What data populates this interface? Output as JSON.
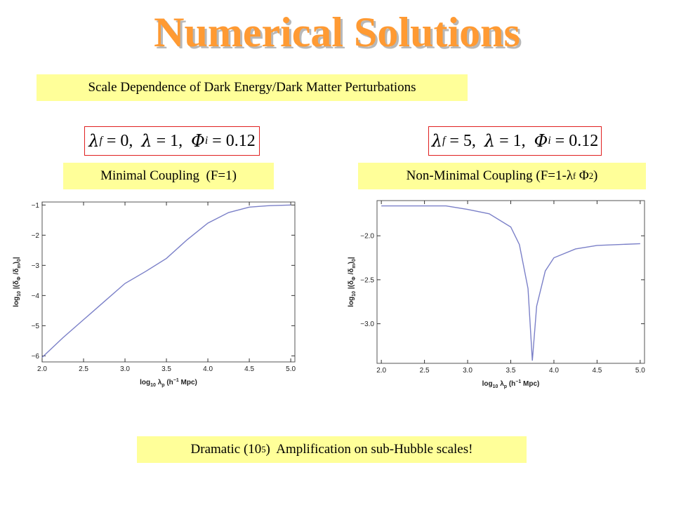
{
  "title": "Numerical Solutions",
  "subtitle": "Scale Dependence of Dark Energy/Dark Matter Perturbations",
  "params": [
    [
      {
        "t": "λ"
      },
      {
        "t": "f",
        "s": "sub"
      },
      {
        "t": " = 0,  "
      },
      {
        "t": "λ"
      },
      {
        "t": " = 1,  "
      },
      {
        "t": "Φ"
      },
      {
        "t": "i",
        "s": "sub"
      },
      {
        "t": " = 0.12"
      }
    ],
    [
      {
        "t": "λ"
      },
      {
        "t": "f",
        "s": "sub"
      },
      {
        "t": " = 5,  "
      },
      {
        "t": "λ"
      },
      {
        "t": " = 1,  "
      },
      {
        "t": "Φ"
      },
      {
        "t": "i",
        "s": "sub"
      },
      {
        "t": " = 0.12"
      }
    ]
  ],
  "panel_labels": [
    [
      {
        "t": "Minimal Coupling  (F=1)"
      }
    ],
    [
      {
        "t": "Non-Minimal Coupling (F=1-λ"
      },
      {
        "t": "f",
        "s": "sub"
      },
      {
        "t": " Φ"
      },
      {
        "t": "2",
        "s": "sup"
      },
      {
        "t": ")"
      }
    ]
  ],
  "footer": [
    {
      "t": "Dramatic (10"
    },
    {
      "t": "5",
      "s": "sup"
    },
    {
      "t": ")  Amplification on sub-Hubble scales!"
    }
  ],
  "chart_data": [
    {
      "type": "line",
      "x": [
        2.0,
        2.25,
        2.5,
        2.75,
        3.0,
        3.25,
        3.5,
        3.75,
        4.0,
        4.25,
        4.5,
        4.75,
        5.0
      ],
      "series": [
        {
          "color": "#7b80c8",
          "values": [
            -6.05,
            -5.4,
            -4.8,
            -4.2,
            -3.6,
            -3.2,
            -2.77,
            -2.15,
            -1.6,
            -1.25,
            -1.07,
            -1.02,
            -1.0
          ]
        }
      ],
      "xlim": [
        2.0,
        5.05
      ],
      "ylim": [
        -6.2,
        -0.9
      ],
      "xticks": [
        {
          "value": 2.0,
          "label": "2.0"
        },
        {
          "value": 2.5,
          "label": "2.5"
        },
        {
          "value": 3.0,
          "label": "3.0"
        },
        {
          "value": 3.5,
          "label": "3.5"
        },
        {
          "value": 4.0,
          "label": "4.0"
        },
        {
          "value": 4.5,
          "label": "4.5"
        },
        {
          "value": 5.0,
          "label": "5.0"
        }
      ],
      "yticks": [
        {
          "value": -6,
          "label": "−6"
        },
        {
          "value": -5,
          "label": "−5"
        },
        {
          "value": -4,
          "label": "−4"
        },
        {
          "value": -3,
          "label": "−3"
        },
        {
          "value": -2,
          "label": "−2"
        },
        {
          "value": -1,
          "label": "−1"
        }
      ],
      "xlabel": [
        {
          "t": "log"
        },
        {
          "t": "10",
          "s": "sub"
        },
        {
          "t": " λ"
        },
        {
          "t": "p",
          "s": "sub"
        },
        {
          "t": " (h"
        },
        {
          "t": "−1",
          "s": "sup"
        },
        {
          "t": " Mpc)"
        }
      ],
      "ylabel": [
        {
          "t": "log"
        },
        {
          "t": "10",
          "s": "sub"
        },
        {
          "t": " |(δ"
        },
        {
          "t": "Φ",
          "s": "sub"
        },
        {
          "t": " /δ"
        },
        {
          "t": "m",
          "s": "sub"
        },
        {
          "t": ")"
        },
        {
          "t": "0",
          "s": "sub"
        },
        {
          "t": "|"
        }
      ]
    },
    {
      "type": "line",
      "x": [
        2.0,
        2.5,
        2.75,
        3.0,
        3.25,
        3.5,
        3.6,
        3.7,
        3.75,
        3.8,
        3.9,
        4.0,
        4.25,
        4.5,
        5.0
      ],
      "series": [
        {
          "color": "#7b80c8",
          "values": [
            -1.66,
            -1.66,
            -1.66,
            -1.7,
            -1.75,
            -1.9,
            -2.1,
            -2.6,
            -3.42,
            -2.8,
            -2.4,
            -2.25,
            -2.15,
            -2.11,
            -2.09
          ]
        }
      ],
      "xlim": [
        1.95,
        5.05
      ],
      "ylim": [
        -3.45,
        -1.6
      ],
      "xticks": [
        {
          "value": 2.0,
          "label": "2.0"
        },
        {
          "value": 2.5,
          "label": "2.5"
        },
        {
          "value": 3.0,
          "label": "3.0"
        },
        {
          "value": 3.5,
          "label": "3.5"
        },
        {
          "value": 4.0,
          "label": "4.0"
        },
        {
          "value": 4.5,
          "label": "4.5"
        },
        {
          "value": 5.0,
          "label": "5.0"
        }
      ],
      "yticks": [
        {
          "value": -3.0,
          "label": "−3.0"
        },
        {
          "value": -2.5,
          "label": "−2.5"
        },
        {
          "value": -2.0,
          "label": "−2.0"
        }
      ],
      "xlabel": [
        {
          "t": "log"
        },
        {
          "t": "10",
          "s": "sub"
        },
        {
          "t": " λ"
        },
        {
          "t": "p",
          "s": "sub"
        },
        {
          "t": " (h"
        },
        {
          "t": "−1",
          "s": "sup"
        },
        {
          "t": " Mpc)"
        }
      ],
      "ylabel": [
        {
          "t": "log"
        },
        {
          "t": "10",
          "s": "sub"
        },
        {
          "t": " |(δ"
        },
        {
          "t": "Φ",
          "s": "sub"
        },
        {
          "t": " /δ"
        },
        {
          "t": "m",
          "s": "sub"
        },
        {
          "t": ")"
        },
        {
          "t": "0",
          "s": "sub"
        },
        {
          "t": "|"
        }
      ]
    }
  ]
}
